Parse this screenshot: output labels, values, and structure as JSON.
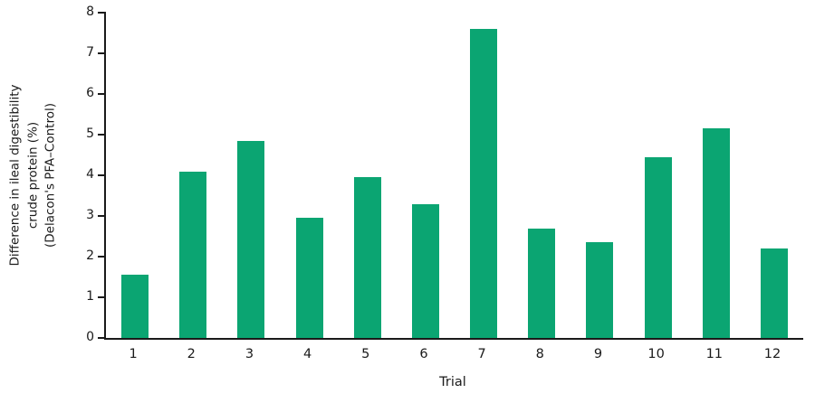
{
  "chart_data": {
    "type": "bar",
    "categories": [
      "1",
      "2",
      "3",
      "4",
      "5",
      "6",
      "7",
      "8",
      "9",
      "10",
      "11",
      "12"
    ],
    "values": [
      1.55,
      4.1,
      4.85,
      2.95,
      3.95,
      3.3,
      7.6,
      2.7,
      2.35,
      4.45,
      5.15,
      2.2
    ],
    "title": "",
    "xlabel": "Trial",
    "ylabel_lines": [
      "Difference in ileal digestibility",
      "crude protein (%)",
      "(Delacon's PFA–Control)"
    ],
    "ylim": [
      0,
      8
    ],
    "yticks": [
      0,
      1,
      2,
      3,
      4,
      5,
      6,
      7,
      8
    ],
    "bar_color": "#0ba572",
    "axis_color": "#1a1a1a",
    "grid": false,
    "legend": "none"
  }
}
